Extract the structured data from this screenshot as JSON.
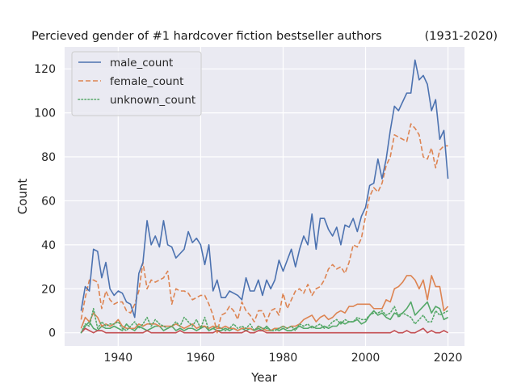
{
  "chart_data": {
    "type": "line",
    "title_left": "Percieved gender of #1 hardcover fiction bestseller authors",
    "title_right": "(1931-2020)",
    "xlabel": "Year",
    "ylabel": "Count",
    "xlim": [
      1927,
      2024
    ],
    "ylim": [
      -6,
      130
    ],
    "x_ticks": [
      1940,
      1960,
      1980,
      2000,
      2020
    ],
    "y_ticks": [
      0,
      20,
      40,
      60,
      80,
      100,
      120
    ],
    "grid": true,
    "legend_position": "top-left",
    "background": "#eaeaf2",
    "x_start": 1931,
    "series": [
      {
        "name": "male_count",
        "color": "#4c72b0",
        "dash": "solid",
        "in_legend": true,
        "values": [
          10,
          21,
          19,
          38,
          37,
          25,
          32,
          20,
          17,
          19,
          18,
          14,
          13,
          7,
          27,
          32,
          51,
          40,
          44,
          39,
          51,
          40,
          39,
          34,
          36,
          38,
          46,
          41,
          43,
          40,
          31,
          40,
          19,
          24,
          16,
          16,
          19,
          18,
          17,
          15,
          25,
          19,
          19,
          24,
          17,
          24,
          20,
          24,
          33,
          28,
          33,
          38,
          30,
          38,
          44,
          40,
          54,
          38,
          52,
          52,
          47,
          44,
          48,
          40,
          49,
          48,
          52,
          46,
          53,
          57,
          67,
          68,
          79,
          70,
          79,
          92,
          103,
          101,
          105,
          109,
          109,
          124,
          115,
          117,
          113,
          101,
          106,
          88,
          92,
          70
        ]
      },
      {
        "name": "female_count",
        "color": "#dd8452",
        "dash": "dashed",
        "in_legend": true,
        "values": [
          6,
          16,
          24,
          24,
          23,
          11,
          19,
          15,
          13,
          14,
          14,
          10,
          9,
          13,
          19,
          32,
          20,
          24,
          23,
          24,
          25,
          28,
          13,
          20,
          19,
          19,
          18,
          15,
          16,
          17,
          17,
          13,
          8,
          0,
          8,
          9,
          12,
          10,
          6,
          14,
          10,
          8,
          5,
          10,
          10,
          5,
          10,
          11,
          8,
          18,
          11,
          15,
          19,
          20,
          18,
          22,
          17,
          20,
          21,
          24,
          29,
          31,
          29,
          30,
          27,
          32,
          40,
          39,
          43,
          53,
          62,
          66,
          64,
          68,
          76,
          80,
          90,
          89,
          88,
          87,
          95,
          93,
          90,
          80,
          79,
          84,
          75,
          83,
          85,
          85
        ]
      },
      {
        "name": "unknown_count",
        "color": "#55a868",
        "dash": "dotted",
        "in_legend": true,
        "values": [
          0,
          4,
          3,
          11,
          2,
          5,
          3,
          4,
          4,
          5,
          2,
          1,
          3,
          5,
          2,
          4,
          7,
          3,
          6,
          4,
          3,
          2,
          3,
          5,
          3,
          7,
          5,
          3,
          6,
          2,
          7,
          1,
          2,
          3,
          2,
          1,
          2,
          4,
          2,
          3,
          2,
          4,
          1,
          3,
          2,
          2,
          1,
          1,
          2,
          3,
          2,
          3,
          1,
          4,
          3,
          4,
          2,
          3,
          4,
          2,
          3,
          5,
          6,
          4,
          6,
          5,
          5,
          7,
          6,
          6,
          8,
          9,
          9,
          10,
          8,
          9,
          12,
          7,
          9,
          8,
          7,
          4,
          6,
          8,
          5,
          5,
          10,
          8,
          9,
          10
        ]
      },
      {
        "name": "",
        "color": "#55a868",
        "dash": "solid",
        "in_legend": false,
        "values": [
          0,
          3,
          5,
          2,
          1,
          3,
          2,
          2,
          3,
          2,
          1,
          4,
          2,
          1,
          3,
          2,
          1,
          2,
          3,
          3,
          1,
          2,
          3,
          1,
          2,
          1,
          2,
          2,
          1,
          2,
          3,
          1,
          2,
          1,
          1,
          2,
          1,
          2,
          1,
          2,
          1,
          2,
          1,
          2,
          1,
          3,
          1,
          2,
          1,
          2,
          1,
          1,
          2,
          3,
          2,
          2,
          3,
          2,
          2,
          3,
          2,
          3,
          3,
          5,
          4,
          5,
          5,
          6,
          4,
          5,
          8,
          10,
          8,
          9,
          7,
          6,
          9,
          8,
          9,
          11,
          14,
          8,
          10,
          12,
          14,
          9,
          12,
          11,
          6,
          7
        ]
      },
      {
        "name": "",
        "color": "#c44e52",
        "dash": "solid",
        "in_legend": false,
        "values": [
          0,
          2,
          1,
          0,
          1,
          1,
          0,
          0,
          0,
          0,
          0,
          0,
          0,
          0,
          0,
          0,
          1,
          0,
          0,
          0,
          0,
          0,
          0,
          0,
          1,
          0,
          0,
          0,
          0,
          0,
          0,
          0,
          0,
          1,
          0,
          0,
          0,
          0,
          0,
          0,
          1,
          0,
          0,
          1,
          1,
          0,
          0,
          0,
          0,
          0,
          0,
          0,
          0,
          0,
          0,
          0,
          0,
          0,
          0,
          0,
          0,
          0,
          0,
          0,
          0,
          0,
          0,
          0,
          0,
          0,
          0,
          0,
          0,
          0,
          0,
          0,
          1,
          0,
          0,
          1,
          0,
          0,
          1,
          2,
          0,
          1,
          0,
          0,
          1,
          0
        ]
      },
      {
        "name": "",
        "color": "#dd8452",
        "dash": "solid",
        "in_legend": false,
        "values": [
          2,
          7,
          5,
          9,
          7,
          3,
          4,
          3,
          4,
          6,
          3,
          2,
          2,
          2,
          4,
          3,
          4,
          4,
          4,
          3,
          3,
          3,
          3,
          4,
          3,
          2,
          3,
          4,
          2,
          3,
          3,
          2,
          3,
          2,
          2,
          3,
          2,
          2,
          1,
          2,
          2,
          2,
          1,
          3,
          2,
          1,
          1,
          2,
          2,
          3,
          2,
          3,
          3,
          4,
          6,
          7,
          8,
          5,
          7,
          8,
          6,
          7,
          9,
          10,
          9,
          12,
          12,
          13,
          13,
          13,
          13,
          11,
          11,
          11,
          15,
          14,
          20,
          21,
          23,
          26,
          26,
          24,
          20,
          24,
          15,
          26,
          21,
          21,
          10,
          12
        ]
      }
    ]
  }
}
